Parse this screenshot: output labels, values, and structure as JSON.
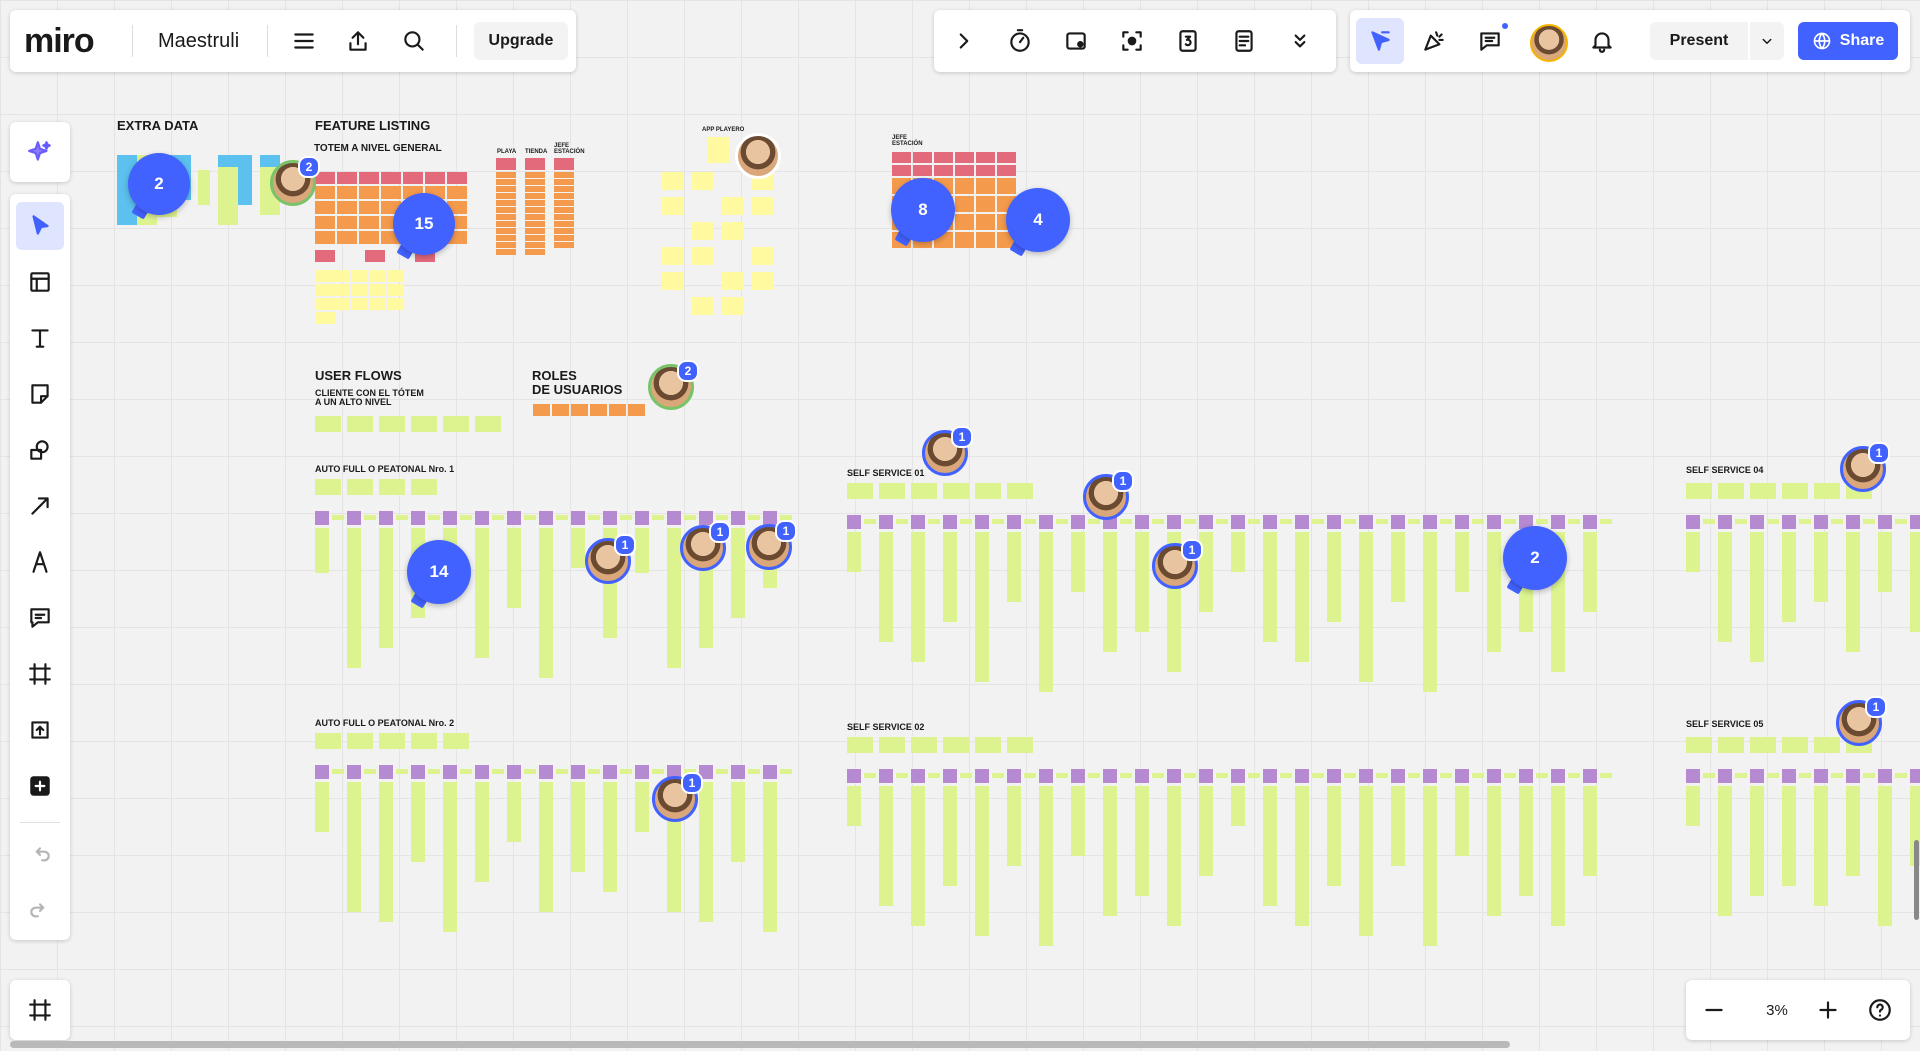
{
  "app": {
    "logo": "miro",
    "board_name": "Maestruli",
    "upgrade_label": "Upgrade"
  },
  "header_right": {
    "present_label": "Present",
    "share_label": "Share"
  },
  "zoom": {
    "level": "3%"
  },
  "colors": {
    "accent": "#4262ff",
    "sticky_green": "#dcf390",
    "sticky_purple": "#b58ad1",
    "sticky_orange": "#f49a4c",
    "sticky_red": "#e36a7b",
    "sticky_yellow": "#fff9a0",
    "sticky_blue": "#5cc1ee"
  },
  "icons": {
    "top_left": [
      "menu-icon",
      "export-icon",
      "search-icon"
    ],
    "top_center": [
      "chevron-right-icon",
      "timer-icon",
      "card-icon",
      "focus-icon",
      "counter-icon",
      "notes-icon",
      "chevrons-down-icon"
    ],
    "top_right": [
      "cursor-flag-icon",
      "celebrate-icon",
      "comments-icon",
      "avatar",
      "bell-icon",
      "chevron-down-icon",
      "globe-icon"
    ],
    "left_tools": [
      "ai-sparkle-icon",
      "select-icon",
      "templates-icon",
      "text-icon",
      "sticky-note-icon",
      "shapes-icon",
      "line-icon",
      "pen-icon",
      "comment-icon",
      "frame-icon",
      "upload-icon",
      "more-apps-icon",
      "undo-icon",
      "redo-icon"
    ],
    "bottom": [
      "frames-icon",
      "zoom-out-icon",
      "zoom-in-icon",
      "help-icon"
    ]
  },
  "board": {
    "labels": {
      "extra_data": "EXTRA DATA",
      "feature_listing": "FEATURE LISTING",
      "totem": "TOTEM A NIVEL GENERAL",
      "playa": "PLAYA",
      "tienda": "TIENDA",
      "jefe_estacion_a": "JEFE\nESTACIÓN",
      "app_playero": "APP PLAYERO",
      "jefe_estacion_b": "JEFE\nESTACIÓN",
      "user_flows": "USER FLOWS",
      "cliente_totem": "CLIENTE CON EL TÓTEM\nA UN ALTO NIVEL",
      "roles": "ROLES\nDE USUARIOS",
      "auto_full_1": "AUTO FULL O PEATONAL Nro. 1",
      "auto_full_2": "AUTO FULL O PEATONAL Nro. 2",
      "self_service_01": "SELF SERVICE 01",
      "self_service_02": "SELF SERVICE 02",
      "self_service_04": "SELF SERVICE 04",
      "self_service_05": "SELF SERVICE 05"
    },
    "comment_counts": [
      "2",
      "15",
      "8",
      "4",
      "14",
      "2"
    ],
    "avatar_badges": [
      "2",
      "2",
      "1",
      "1",
      "1",
      "1",
      "1",
      "1",
      "1",
      "1",
      "1",
      "1"
    ]
  }
}
